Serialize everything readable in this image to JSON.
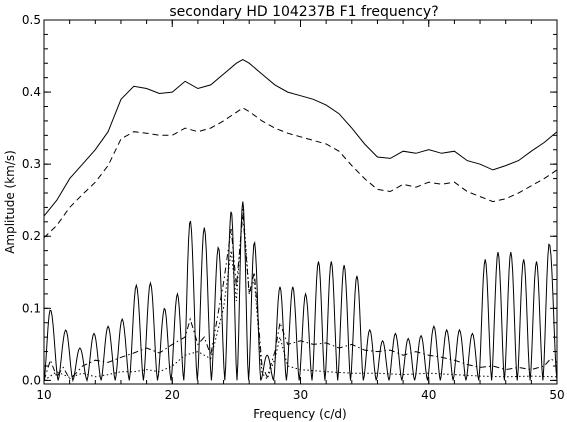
{
  "chart_data": {
    "type": "line",
    "title": "secondary HD 104237B F1 frequency?",
    "xlabel": "Frequency (c/d)",
    "ylabel": "Amplitude (km/s)",
    "xlim": [
      10,
      50
    ],
    "ylim": [
      -0.005,
      0.5
    ],
    "x_ticks": [
      10,
      20,
      30,
      40,
      50
    ],
    "y_ticks": [
      0.0,
      0.1,
      0.2,
      0.3,
      0.4,
      0.5
    ],
    "x_tick_labels": [
      "10",
      "20",
      "30",
      "40",
      "50"
    ],
    "y_tick_labels": [
      "0.0",
      "0.1",
      "0.2",
      "0.3",
      "0.4",
      "0.5"
    ],
    "grid": false,
    "series": [
      {
        "style": "solid",
        "color": "#000000",
        "x": [
          10,
          11,
          12,
          13,
          14,
          15,
          16,
          17,
          18,
          19,
          20,
          21,
          22,
          23,
          24,
          25,
          25.5,
          26,
          27,
          28,
          29,
          30,
          31,
          32,
          33,
          34,
          35,
          36,
          37,
          38,
          39,
          40,
          41,
          42,
          43,
          44,
          45,
          46,
          47,
          48,
          49,
          50
        ],
        "values": [
          0.228,
          0.25,
          0.28,
          0.3,
          0.32,
          0.345,
          0.39,
          0.408,
          0.405,
          0.398,
          0.4,
          0.415,
          0.405,
          0.41,
          0.425,
          0.44,
          0.445,
          0.44,
          0.425,
          0.41,
          0.4,
          0.395,
          0.39,
          0.382,
          0.37,
          0.35,
          0.328,
          0.31,
          0.308,
          0.318,
          0.315,
          0.32,
          0.315,
          0.318,
          0.305,
          0.3,
          0.292,
          0.298,
          0.305,
          0.318,
          0.33,
          0.345
        ]
      },
      {
        "style": "dashed",
        "color": "#000000",
        "x": [
          10,
          11,
          12,
          13,
          14,
          15,
          16,
          17,
          18,
          19,
          20,
          21,
          22,
          23,
          24,
          25,
          25.5,
          26,
          27,
          28,
          29,
          30,
          31,
          32,
          33,
          34,
          35,
          36,
          37,
          38,
          39,
          40,
          41,
          42,
          43,
          44,
          45,
          46,
          47,
          48,
          49,
          50
        ],
        "values": [
          0.198,
          0.215,
          0.24,
          0.258,
          0.275,
          0.298,
          0.335,
          0.345,
          0.343,
          0.34,
          0.34,
          0.35,
          0.345,
          0.35,
          0.36,
          0.372,
          0.378,
          0.373,
          0.36,
          0.35,
          0.343,
          0.338,
          0.333,
          0.328,
          0.318,
          0.298,
          0.28,
          0.265,
          0.262,
          0.272,
          0.268,
          0.275,
          0.272,
          0.275,
          0.262,
          0.255,
          0.248,
          0.252,
          0.26,
          0.27,
          0.28,
          0.292
        ]
      },
      {
        "style": "solid",
        "color": "#000000",
        "peaks": [
          {
            "x": 10.5,
            "y": 0.098
          },
          {
            "x": 11.7,
            "y": 0.07
          },
          {
            "x": 12.8,
            "y": 0.045
          },
          {
            "x": 13.9,
            "y": 0.065
          },
          {
            "x": 15.0,
            "y": 0.075
          },
          {
            "x": 16.1,
            "y": 0.085
          },
          {
            "x": 17.2,
            "y": 0.132
          },
          {
            "x": 18.3,
            "y": 0.135
          },
          {
            "x": 19.4,
            "y": 0.1
          },
          {
            "x": 20.4,
            "y": 0.12
          },
          {
            "x": 21.4,
            "y": 0.222
          },
          {
            "x": 22.5,
            "y": 0.212
          },
          {
            "x": 23.6,
            "y": 0.185
          },
          {
            "x": 24.6,
            "y": 0.235
          },
          {
            "x": 25.5,
            "y": 0.248
          },
          {
            "x": 26.4,
            "y": 0.192
          },
          {
            "x": 27.4,
            "y": 0.035
          },
          {
            "x": 28.4,
            "y": 0.13
          },
          {
            "x": 29.4,
            "y": 0.13
          },
          {
            "x": 30.4,
            "y": 0.12
          },
          {
            "x": 31.4,
            "y": 0.165
          },
          {
            "x": 32.4,
            "y": 0.165
          },
          {
            "x": 33.4,
            "y": 0.16
          },
          {
            "x": 34.4,
            "y": 0.145
          },
          {
            "x": 35.4,
            "y": 0.07
          },
          {
            "x": 36.4,
            "y": 0.055
          },
          {
            "x": 37.4,
            "y": 0.065
          },
          {
            "x": 38.4,
            "y": 0.058
          },
          {
            "x": 39.4,
            "y": 0.062
          },
          {
            "x": 40.4,
            "y": 0.075
          },
          {
            "x": 41.4,
            "y": 0.07
          },
          {
            "x": 42.4,
            "y": 0.07
          },
          {
            "x": 43.4,
            "y": 0.065
          },
          {
            "x": 44.4,
            "y": 0.168
          },
          {
            "x": 45.4,
            "y": 0.178
          },
          {
            "x": 46.4,
            "y": 0.178
          },
          {
            "x": 47.4,
            "y": 0.168
          },
          {
            "x": 48.4,
            "y": 0.165
          },
          {
            "x": 49.4,
            "y": 0.19
          }
        ]
      },
      {
        "style": "dash-dot",
        "color": "#000000",
        "x": [
          10,
          10.5,
          11,
          11.5,
          12,
          12.5,
          13,
          14,
          15,
          16,
          17,
          18,
          19,
          20,
          21,
          21.4,
          22,
          22.5,
          23,
          24,
          24.6,
          25,
          25.5,
          26,
          26.4,
          27,
          27.4,
          28,
          28.4,
          29,
          30,
          31,
          32,
          33,
          34,
          35,
          36,
          37,
          38,
          39,
          40,
          41,
          42,
          43,
          44,
          45,
          46,
          47,
          48,
          49,
          49.5,
          50
        ],
        "values": [
          0.0,
          0.028,
          0.005,
          0.018,
          0.002,
          0.01,
          0.02,
          0.028,
          0.025,
          0.032,
          0.038,
          0.045,
          0.038,
          0.05,
          0.06,
          0.085,
          0.05,
          0.06,
          0.035,
          0.135,
          0.21,
          0.13,
          0.23,
          0.12,
          0.15,
          0.02,
          0.005,
          0.04,
          0.08,
          0.05,
          0.055,
          0.05,
          0.052,
          0.045,
          0.05,
          0.042,
          0.04,
          0.042,
          0.035,
          0.04,
          0.035,
          0.032,
          0.028,
          0.022,
          0.018,
          0.02,
          0.015,
          0.018,
          0.015,
          0.02,
          0.03,
          0.025
        ]
      },
      {
        "style": "dotted",
        "color": "#000000",
        "x": [
          10,
          11,
          12,
          13,
          14,
          15,
          16,
          17,
          18,
          19,
          20,
          21,
          22,
          23,
          24,
          24.6,
          25,
          25.5,
          26,
          26.4,
          27,
          27.4,
          28,
          28.4,
          29,
          30,
          32,
          34,
          36,
          38,
          40,
          42,
          44,
          46,
          48,
          50
        ],
        "values": [
          0.0,
          0.012,
          0.004,
          0.01,
          0.005,
          0.008,
          0.012,
          0.012,
          0.015,
          0.012,
          0.02,
          0.035,
          0.04,
          0.03,
          0.1,
          0.18,
          0.11,
          0.245,
          0.12,
          0.14,
          0.01,
          0.002,
          0.03,
          0.06,
          0.02,
          0.015,
          0.012,
          0.01,
          0.01,
          0.008,
          0.01,
          0.008,
          0.006,
          0.005,
          0.006,
          0.005
        ]
      }
    ]
  }
}
